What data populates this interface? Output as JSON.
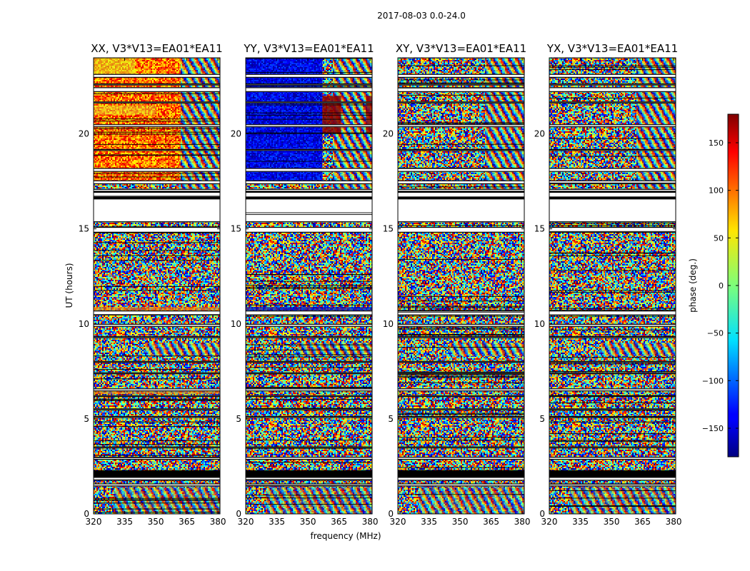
{
  "chart_data": {
    "type": "heatmap",
    "title": "2017-08-03 0.0-24.0",
    "xlabel": "frequency (MHz)",
    "ylabel": "UT (hours)",
    "xlim": [
      320,
      381
    ],
    "ylim": [
      0,
      24
    ],
    "xticks": [
      320,
      335,
      350,
      365,
      380
    ],
    "xtick_labels": [
      "320",
      "335",
      "350",
      "365",
      "380"
    ],
    "yticks": [
      0,
      5,
      10,
      15,
      20
    ],
    "ytick_labels": [
      "0",
      "5",
      "10",
      "15",
      "20"
    ],
    "panels": [
      {
        "title": "XX, V3*V13=EA01*EA11",
        "pol": "XX"
      },
      {
        "title": "YY, V3*V13=EA01*EA11",
        "pol": "YY"
      },
      {
        "title": "XY, V3*V13=EA01*EA11",
        "pol": "XY"
      },
      {
        "title": "YX, V3*V13=EA01*EA11",
        "pol": "YX"
      }
    ],
    "colorbar": {
      "label": "phase (deg.)",
      "range": [
        -180,
        180
      ],
      "colormap": "jet",
      "ticks": [
        -150,
        -100,
        -50,
        0,
        50,
        100,
        150
      ],
      "tick_labels": [
        "−150",
        "−100",
        "−50",
        "0",
        "50",
        "100",
        "150"
      ]
    },
    "flagged_ut_hours": [
      [
        1.45,
        1.6
      ],
      [
        1.75,
        2.1
      ],
      [
        2.85,
        3.0
      ],
      [
        3.45,
        3.55
      ],
      [
        5.05,
        5.15
      ],
      [
        5.45,
        5.55
      ],
      [
        6.15,
        6.25
      ],
      [
        6.45,
        6.6
      ],
      [
        7.35,
        7.45
      ],
      [
        7.95,
        8.05
      ],
      [
        9.25,
        9.35
      ],
      [
        9.85,
        10.0
      ],
      [
        10.45,
        10.7
      ],
      [
        14.8,
        15.1
      ],
      [
        15.35,
        17.1
      ],
      [
        17.35,
        17.55
      ],
      [
        18.0,
        18.2
      ],
      [
        19.1,
        19.2
      ],
      [
        20.35,
        20.5
      ],
      [
        21.6,
        21.7
      ],
      [
        22.2,
        22.45
      ],
      [
        22.55,
        22.65
      ],
      [
        22.95,
        23.15
      ]
    ]
  }
}
